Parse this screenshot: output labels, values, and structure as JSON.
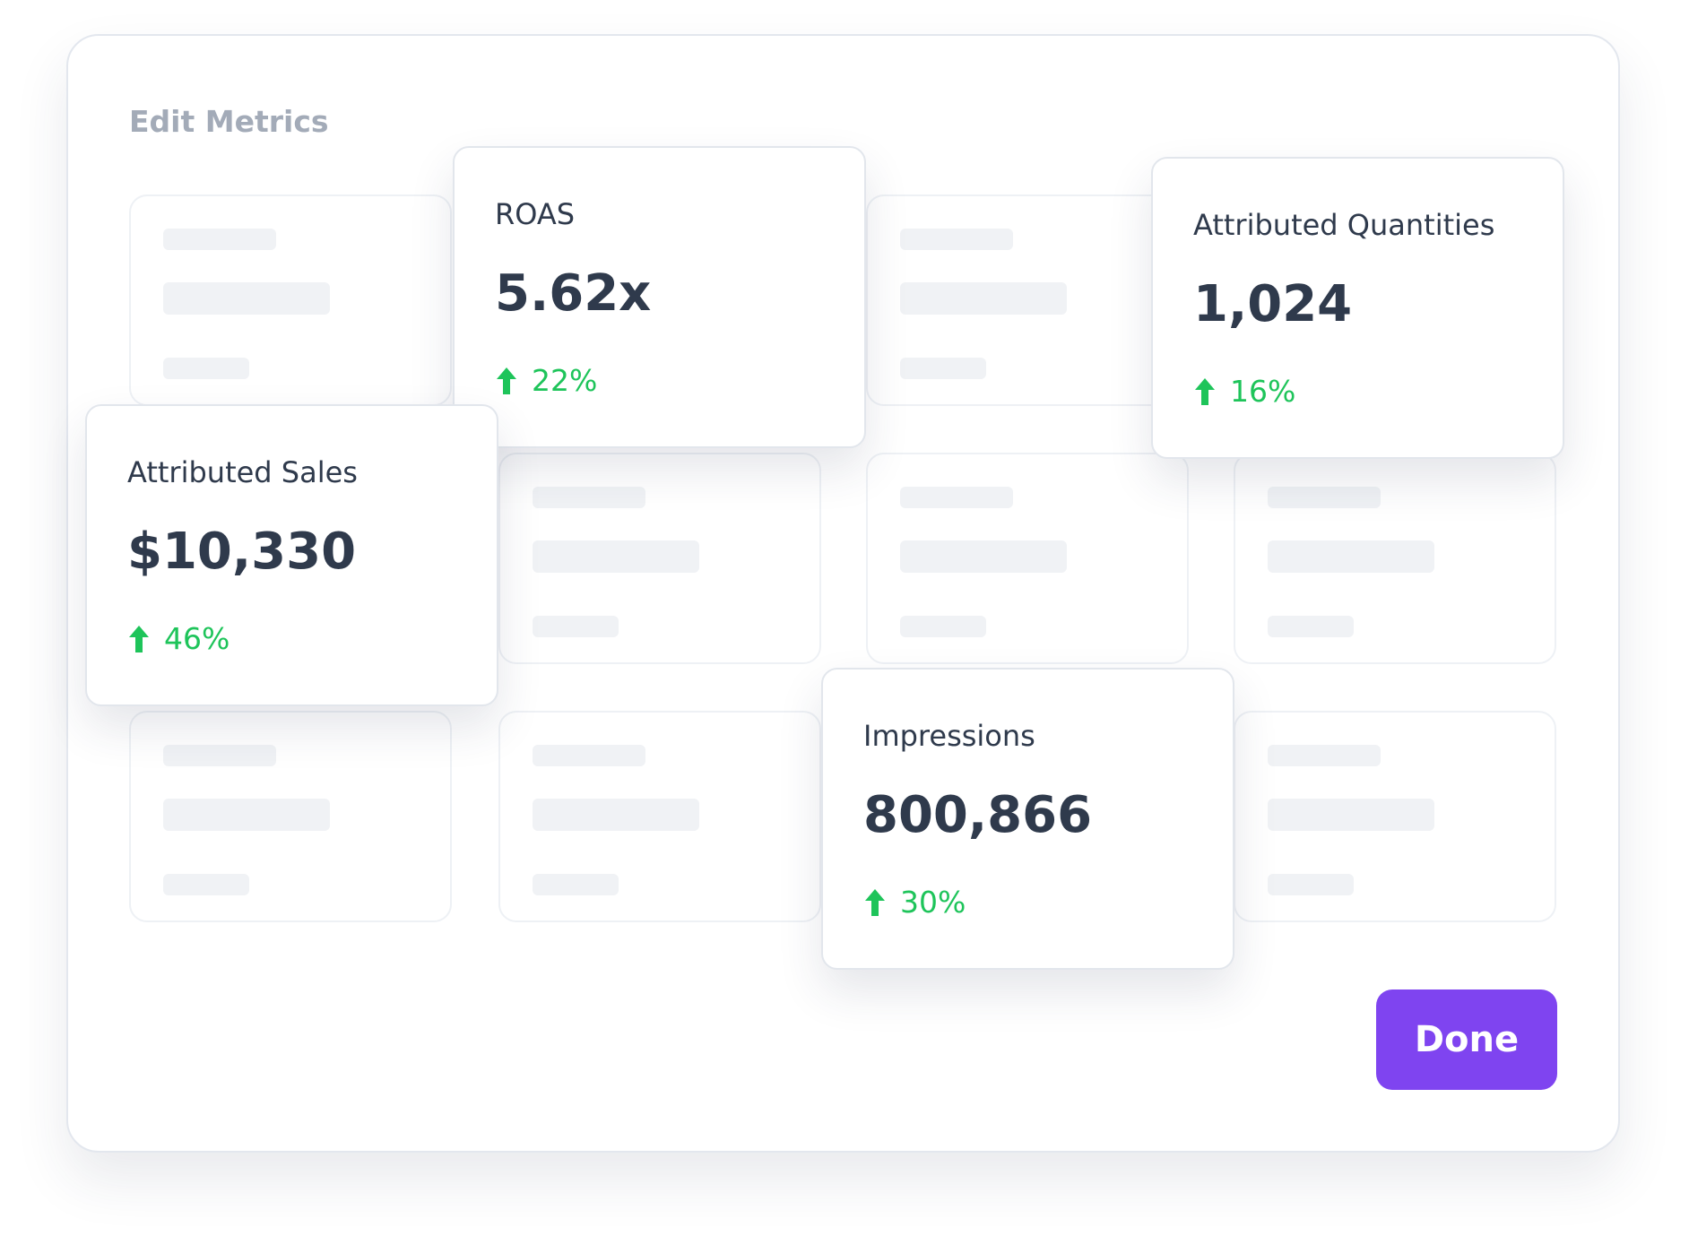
{
  "header": {
    "title": "Edit Metrics"
  },
  "cards": [
    {
      "title": "ROAS",
      "value": "5.62x",
      "change": "22%"
    },
    {
      "title": "Attributed Sales",
      "value": "$10,330",
      "change": "46%"
    },
    {
      "title": "Attributed Quantities",
      "value": "1,024",
      "change": "16%"
    },
    {
      "title": "Impressions",
      "value": "800,866",
      "change": "30%"
    }
  ],
  "button": {
    "label": "Done"
  }
}
